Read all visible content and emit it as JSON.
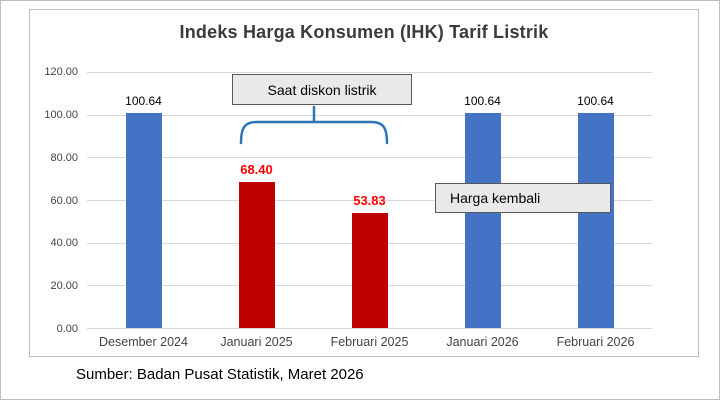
{
  "source": "Sumber: Badan Pusat Statistik, Maret 2026",
  "annotations": {
    "discount": "Saat diskon listrik",
    "return": "Harga kembali"
  },
  "colors": {
    "blue": "#4472C4",
    "red": "#C00000",
    "label_red": "#FF0000",
    "label_black": "#000000",
    "brace": "#2E75B6",
    "gridline": "#D9D9D9",
    "callout_bg": "#E9E9E9",
    "callout_border": "#595959"
  },
  "chart_data": {
    "type": "bar",
    "title": "Indeks Harga Konsumen (IHK) Tarif Listrik",
    "xlabel": "",
    "ylabel": "",
    "categories": [
      "Desember 2024",
      "Januari 2025",
      "Februari 2025",
      "Januari 2026",
      "Februari 2026"
    ],
    "values": [
      100.64,
      68.4,
      53.83,
      100.64,
      100.64
    ],
    "labels": [
      "100.64",
      "68.40",
      "53.83",
      "100.64",
      "100.64"
    ],
    "bar_colors": [
      "blue",
      "red",
      "red",
      "blue",
      "blue"
    ],
    "ylim": [
      0,
      120
    ],
    "yticks": [
      "120.00",
      "100.00",
      "80.00",
      "60.00",
      "40.00",
      "20.00",
      "0.00"
    ],
    "grid": true,
    "legend": false
  }
}
